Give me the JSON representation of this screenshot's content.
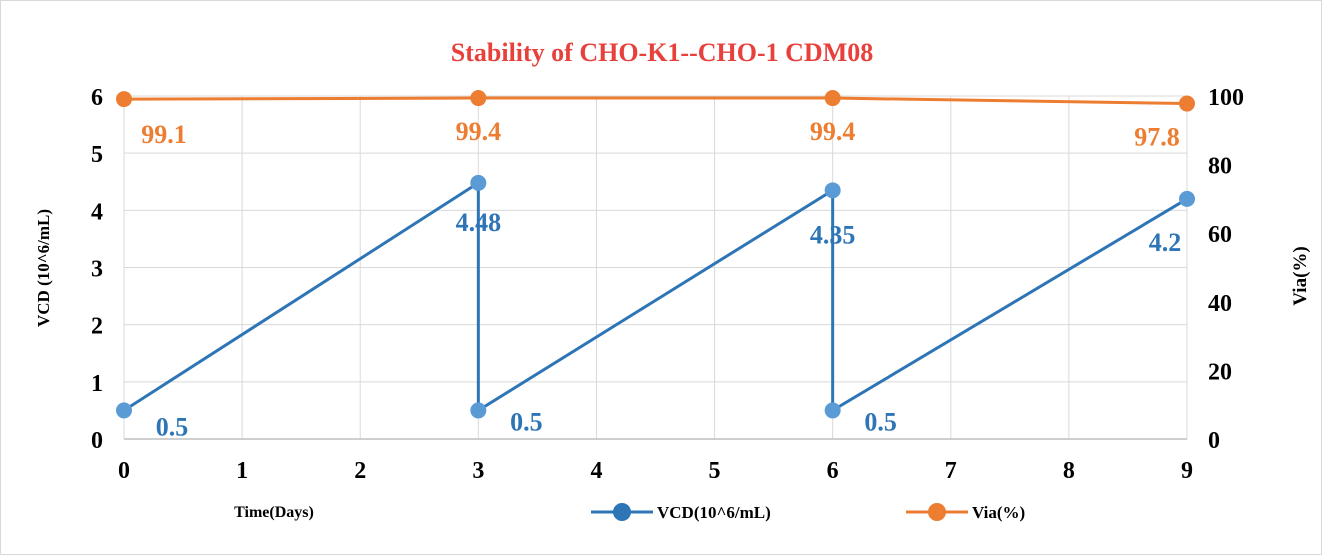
{
  "chart_data": {
    "type": "line",
    "title": "Stability of CHO-K1--CHO-1 CDM08",
    "xlabel": "Time(Days)",
    "ylabel": "VCD (10^6/mL)",
    "y2label": "Via(%)",
    "xlim": [
      0,
      9
    ],
    "ylim": [
      0,
      6
    ],
    "y2lim": [
      0,
      100
    ],
    "x_ticks": [
      "0",
      "1",
      "2",
      "3",
      "4",
      "5",
      "6",
      "7",
      "8",
      "9"
    ],
    "y_ticks": [
      "0",
      "1",
      "2",
      "3",
      "4",
      "5",
      "6"
    ],
    "y2_ticks": [
      "0",
      "20",
      "40",
      "60",
      "80",
      "100"
    ],
    "grid": true,
    "legend_position": "bottom",
    "series": [
      {
        "name": "VCD(10^6/mL)",
        "axis": "left",
        "color": "#2E75B6",
        "marker_color": "#5B9BD5",
        "points": [
          {
            "x": 0,
            "y": 0.5
          },
          {
            "x": 3,
            "y": 4.48
          },
          {
            "x": 3,
            "y": 0.5
          },
          {
            "x": 6,
            "y": 4.35
          },
          {
            "x": 6,
            "y": 0.5
          },
          {
            "x": 9,
            "y": 4.2
          }
        ],
        "labels": [
          {
            "x": 0,
            "y": 0.5,
            "text": "0.5"
          },
          {
            "x": 3,
            "y": 4.48,
            "text": "4.48"
          },
          {
            "x": 3,
            "y": 0.5,
            "text": "0.5"
          },
          {
            "x": 6,
            "y": 4.35,
            "text": "4.35"
          },
          {
            "x": 6,
            "y": 0.5,
            "text": "0.5"
          },
          {
            "x": 9,
            "y": 4.2,
            "text": "4.2"
          }
        ]
      },
      {
        "name": "Via(%)",
        "axis": "right",
        "color": "#ED7D31",
        "marker_color": "#ED7D31",
        "points": [
          {
            "x": 0,
            "y": 99.1
          },
          {
            "x": 3,
            "y": 99.4
          },
          {
            "x": 6,
            "y": 99.4
          },
          {
            "x": 9,
            "y": 97.8
          }
        ],
        "labels": [
          {
            "x": 0,
            "y": 99.1,
            "text": "99.1"
          },
          {
            "x": 3,
            "y": 99.4,
            "text": "99.4"
          },
          {
            "x": 6,
            "y": 99.4,
            "text": "99.4"
          },
          {
            "x": 9,
            "y": 97.8,
            "text": "97.8"
          }
        ]
      }
    ]
  }
}
